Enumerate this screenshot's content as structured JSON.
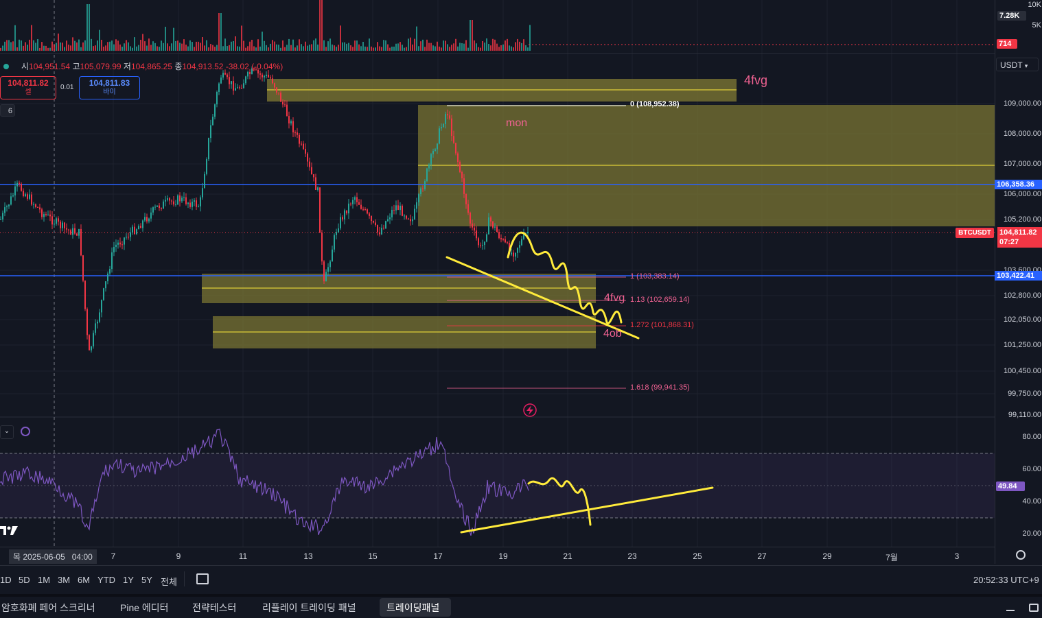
{
  "symbol_ohlc": {
    "open_label": "시",
    "open": "104,951.54",
    "high_label": "고",
    "high": "105,079.99",
    "low_label": "저",
    "low": "104,865.25",
    "close_label": "종",
    "close": "104,913.52",
    "change": "-38.02 (-0.04%)"
  },
  "trade": {
    "sell_price": "104,811.82",
    "sell_label": "셀",
    "spread": "0.01",
    "buy_price": "104,811.83",
    "buy_label": "바이"
  },
  "indicator_count": "6",
  "currency": "USDT",
  "volume_axis": {
    "ticks": [
      "10K",
      "5K"
    ],
    "current": "7.28K",
    "last": "714"
  },
  "price_axis": {
    "ticks": [
      "109,000.00",
      "108,000.00",
      "107,000.00",
      "106,000.00",
      "105,200.00",
      "103,600.00",
      "102,800.00",
      "102,050.00",
      "101,250.00",
      "100,450.00",
      "99,750.00",
      "99,110.00"
    ],
    "line_upper": "106,358.36",
    "line_lower": "103,422.41",
    "current_symbol": "BTCUSDT",
    "current_price": "104,811.82",
    "countdown": "07:27"
  },
  "fib_levels": [
    {
      "label": "0 (108,952.38)"
    },
    {
      "label": "1 (103,383.14)"
    },
    {
      "label": "1.13 (102,659.14)"
    },
    {
      "label": "1.272 (101,868.31)"
    },
    {
      "label": "1.618 (99,941.35)"
    }
  ],
  "annotations": {
    "top_zone": "4fvg",
    "mon": "mon",
    "mid_zone": "4fvg",
    "ob_zone": "4ob"
  },
  "rsi_axis": {
    "ticks": [
      "80.00",
      "60.00",
      "40.00",
      "20.00"
    ],
    "value": "49.84"
  },
  "time_axis": {
    "cursor": "목 2025-06-05   04:00",
    "ticks": [
      "7",
      "9",
      "11",
      "13",
      "15",
      "17",
      "19",
      "21",
      "23",
      "25",
      "27",
      "29",
      "7월",
      "3"
    ]
  },
  "timeframes": [
    "1D",
    "5D",
    "1M",
    "3M",
    "6M",
    "YTD",
    "1Y",
    "5Y",
    "전체"
  ],
  "clock": "20:52:33 UTC+9",
  "bottom_tabs": [
    "암호화폐 페어 스크리너",
    "Pine 에디터",
    "전략테스터",
    "리플레이 트레이딩 패널",
    "트레이딩패널"
  ],
  "colors": {
    "up": "#26a69a",
    "down": "#f23645",
    "zone": "#7a7433",
    "blue_line": "#2962ff",
    "rsi": "#7e57c2",
    "drawing": "#ffeb3b"
  }
}
